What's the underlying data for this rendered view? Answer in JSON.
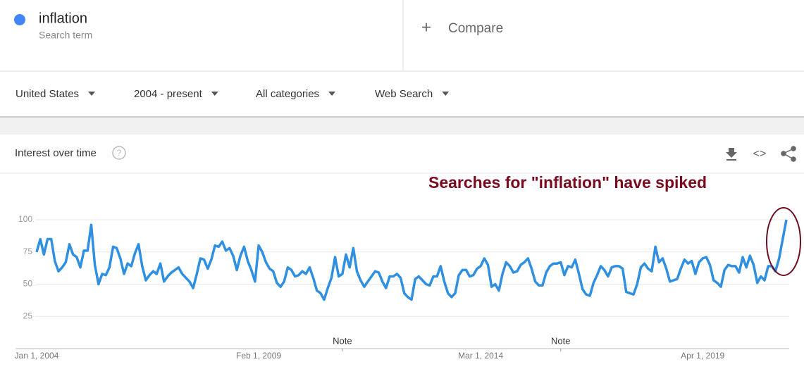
{
  "search": {
    "term": "inflation",
    "subtitle": "Search term",
    "compare": "Compare"
  },
  "filters": [
    "United States",
    "2004 - present",
    "All categories",
    "Web Search"
  ],
  "panel_title": "Interest over time",
  "chart_data": {
    "type": "line",
    "annotation": "Searches for \"inflation\" have spiked",
    "series": [
      {
        "name": "inflation",
        "color": "#2f8fe0",
        "values": [
          75,
          85,
          73,
          85,
          85,
          68,
          60,
          63,
          67,
          81,
          73,
          71,
          63,
          76,
          76,
          96,
          65,
          50,
          58,
          57,
          63,
          79,
          78,
          70,
          58,
          66,
          64,
          74,
          81,
          64,
          53,
          57,
          60,
          58,
          66,
          52,
          56,
          59,
          61,
          63,
          58,
          55,
          52,
          47,
          58,
          70,
          69,
          62,
          69,
          80,
          79,
          83,
          76,
          78,
          72,
          61,
          72,
          79,
          68,
          61,
          52,
          80,
          75,
          67,
          62,
          60,
          51,
          48,
          52,
          63,
          61,
          56,
          57,
          60,
          58,
          63,
          55,
          45,
          43,
          38,
          47,
          55,
          71,
          56,
          58,
          73,
          63,
          78,
          60,
          53,
          48,
          52,
          56,
          60,
          59,
          52,
          47,
          56,
          56,
          58,
          55,
          43,
          40,
          38,
          54,
          56,
          53,
          50,
          49,
          56,
          56,
          64,
          52,
          43,
          40,
          43,
          57,
          61,
          61,
          56,
          57,
          62,
          64,
          70,
          65,
          48,
          50,
          45,
          58,
          67,
          64,
          59,
          60,
          65,
          67,
          70,
          62,
          52,
          49,
          49,
          59,
          64,
          66,
          66,
          67,
          57,
          64,
          63,
          69,
          58,
          46,
          42,
          41,
          51,
          57,
          64,
          61,
          56,
          63,
          64,
          64,
          62,
          44,
          43,
          42,
          50,
          63,
          66,
          62,
          60,
          79,
          67,
          70,
          62,
          52,
          53,
          54,
          62,
          69,
          66,
          68,
          58,
          67,
          70,
          71,
          65,
          53,
          51,
          48,
          61,
          65,
          64,
          64,
          59,
          71,
          63,
          72,
          65,
          51,
          56,
          53,
          64,
          64,
          60,
          70,
          85,
          100
        ]
      }
    ],
    "xstart": "2004-01",
    "xend": "2021-03",
    "xticks": [
      {
        "value": "2004-01-01",
        "label": "Jan 1, 2004"
      },
      {
        "value": "2009-02-01",
        "label": "Feb 1, 2009"
      },
      {
        "value": "2014-03-01",
        "label": "Mar 1, 2014"
      },
      {
        "value": "2019-04-01",
        "label": "Apr 1, 2019"
      }
    ],
    "notes": [
      {
        "x": "2011-01-01",
        "label": "Note"
      },
      {
        "x": "2016-01-01",
        "label": "Note"
      }
    ],
    "ylim": [
      0,
      100
    ],
    "yticks": [
      25,
      50,
      75,
      100
    ],
    "grid": true
  }
}
